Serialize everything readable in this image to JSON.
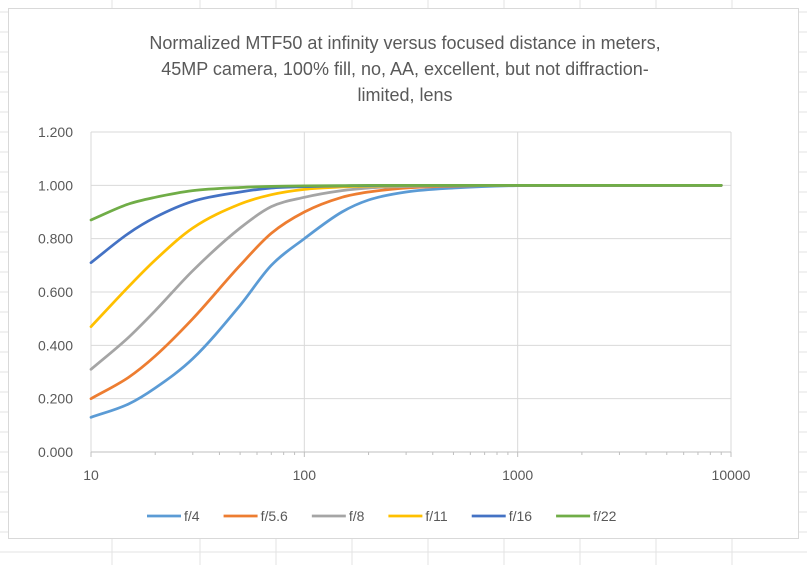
{
  "chart_data": {
    "type": "line",
    "title_lines": [
      "Normalized MTF50 at infinity versus focused distance in meters,",
      "45MP camera, 100% fill, no, AA, excellent, but not diffraction-",
      "limited, lens"
    ],
    "xlabel": "",
    "ylabel": "",
    "x_scale": "log",
    "xlim": [
      10,
      10000
    ],
    "ylim": [
      0,
      1.2
    ],
    "x_ticks": [
      10,
      100,
      1000,
      10000
    ],
    "x_tick_labels": [
      "10",
      "100",
      "1000",
      "10000"
    ],
    "y_ticks": [
      0,
      0.2,
      0.4,
      0.6,
      0.8,
      1.0,
      1.2
    ],
    "y_tick_labels": [
      "0.000",
      "0.200",
      "0.400",
      "0.600",
      "0.800",
      "1.000",
      "1.200"
    ],
    "grid": true,
    "legend_position": "bottom",
    "x": [
      10,
      15,
      20,
      30,
      50,
      70,
      100,
      150,
      200,
      300,
      500,
      1000,
      2000,
      5000,
      9000
    ],
    "series": [
      {
        "name": "f/4",
        "color": "#5b9bd5",
        "values": [
          0.13,
          0.18,
          0.24,
          0.35,
          0.55,
          0.7,
          0.8,
          0.9,
          0.945,
          0.975,
          0.99,
          0.999,
          1.0,
          1.0,
          1.0
        ]
      },
      {
        "name": "f/5.6",
        "color": "#ed7d31",
        "values": [
          0.2,
          0.28,
          0.36,
          0.5,
          0.7,
          0.82,
          0.9,
          0.955,
          0.975,
          0.99,
          0.997,
          1.0,
          1.0,
          1.0,
          1.0
        ]
      },
      {
        "name": "f/8",
        "color": "#a5a5a5",
        "values": [
          0.31,
          0.43,
          0.53,
          0.68,
          0.84,
          0.92,
          0.955,
          0.98,
          0.99,
          0.996,
          0.999,
          1.0,
          1.0,
          1.0,
          1.0
        ]
      },
      {
        "name": "f/11",
        "color": "#ffc000",
        "values": [
          0.47,
          0.62,
          0.72,
          0.84,
          0.93,
          0.965,
          0.985,
          0.994,
          0.997,
          0.999,
          1.0,
          1.0,
          1.0,
          1.0,
          1.0
        ]
      },
      {
        "name": "f/16",
        "color": "#4472c4",
        "values": [
          0.71,
          0.82,
          0.88,
          0.94,
          0.975,
          0.99,
          0.995,
          0.998,
          0.999,
          1.0,
          1.0,
          1.0,
          1.0,
          1.0,
          1.0
        ]
      },
      {
        "name": "f/22",
        "color": "#70ad47",
        "values": [
          0.87,
          0.93,
          0.955,
          0.98,
          0.992,
          0.996,
          0.998,
          0.999,
          1.0,
          1.0,
          1.0,
          1.0,
          1.0,
          1.0,
          1.0
        ]
      }
    ]
  }
}
